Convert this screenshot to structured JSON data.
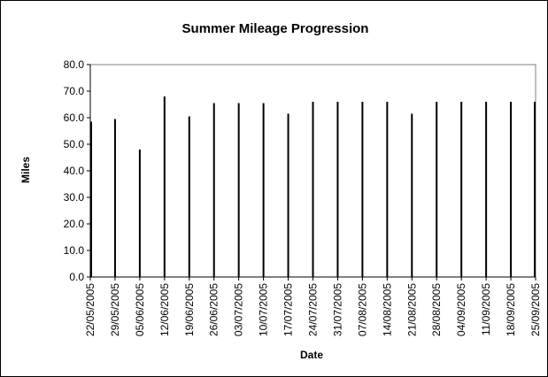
{
  "chart_data": {
    "type": "bar",
    "title": "Summer Mileage Progression",
    "xlabel": "Date",
    "ylabel": "Miles",
    "ylim": [
      0,
      80
    ],
    "yticks": [
      "0.0",
      "10.0",
      "20.0",
      "30.0",
      "40.0",
      "50.0",
      "60.0",
      "70.0",
      "80.0"
    ],
    "x": [
      "22/05/2005",
      "29/05/2005",
      "05/06/2005",
      "12/06/2005",
      "19/06/2005",
      "26/06/2005",
      "03/07/2005",
      "10/07/2005",
      "17/07/2005",
      "24/07/2005",
      "31/07/2005",
      "07/08/2005",
      "14/08/2005",
      "21/08/2005",
      "28/08/2005",
      "04/09/2005",
      "11/09/2005",
      "18/09/2005",
      "25/09/2005"
    ],
    "values": [
      58.5,
      59.5,
      48.0,
      68.0,
      60.5,
      65.5,
      65.5,
      65.5,
      61.5,
      66.0,
      66.0,
      66.0,
      66.0,
      61.5,
      66.0,
      66.0,
      66.0,
      66.0,
      66.0
    ],
    "x_axis_type": "date",
    "grid": false,
    "legend": "none",
    "colors": {
      "bar": "#000000",
      "axis": "#000000",
      "frame": "#808080",
      "background": "#ffffff"
    }
  }
}
